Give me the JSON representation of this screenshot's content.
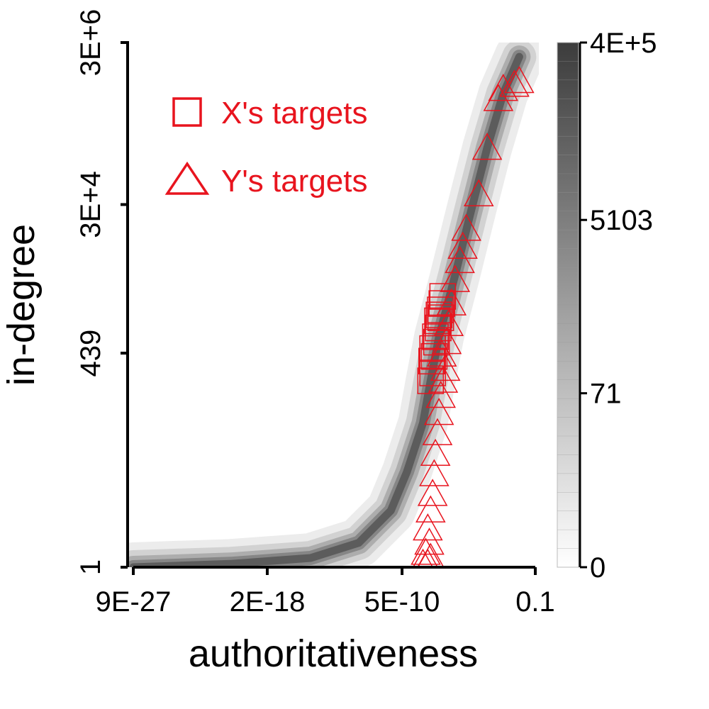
{
  "chart_data": {
    "type": "heatmap",
    "xlabel": "authoritativeness",
    "ylabel": "in-degree",
    "x_scale": "log",
    "y_scale": "log",
    "xlim": [
      9e-27,
      0.1
    ],
    "ylim": [
      1,
      3000000
    ],
    "x_ticks": [
      {
        "value": 9e-27,
        "label": "9E-27"
      },
      {
        "value": 2e-18,
        "label": "2E-18"
      },
      {
        "value": 5e-10,
        "label": "5E-10"
      },
      {
        "value": 0.1,
        "label": "0.1"
      }
    ],
    "y_ticks": [
      {
        "value": 1,
        "label": "1"
      },
      {
        "value": 439,
        "label": "439"
      },
      {
        "value": 30000,
        "label": "3E+4"
      },
      {
        "value": 3000000,
        "label": "3E+6"
      }
    ],
    "colorbar": {
      "ticks": [
        {
          "value": 0,
          "label": "0"
        },
        {
          "value": 71,
          "label": "71"
        },
        {
          "value": 5103,
          "label": "5103"
        },
        {
          "value": 400000,
          "label": "4E+5"
        }
      ],
      "colors": [
        "#ffffff",
        "#3c3c3c"
      ]
    },
    "legend": {
      "placement": "top-left",
      "items": [
        {
          "label": "X's targets",
          "marker": "square",
          "color": "#e8141e"
        },
        {
          "label": "Y's targets",
          "marker": "triangle",
          "color": "#e8141e"
        }
      ]
    },
    "density_curve": [
      {
        "x": 9e-27,
        "y": 1
      },
      {
        "x": 1e-20,
        "y": 1.1
      },
      {
        "x": 1e-15,
        "y": 1.3
      },
      {
        "x": 1e-12,
        "y": 2
      },
      {
        "x": 1e-10,
        "y": 5
      },
      {
        "x": 1e-09,
        "y": 15
      },
      {
        "x": 1e-08,
        "y": 60
      },
      {
        "x": 3e-08,
        "y": 200
      },
      {
        "x": 1e-07,
        "y": 700
      },
      {
        "x": 1e-06,
        "y": 4000
      },
      {
        "x": 1e-05,
        "y": 25000
      },
      {
        "x": 0.0001,
        "y": 150000
      },
      {
        "x": 0.001,
        "y": 700000
      },
      {
        "x": 0.01,
        "y": 2000000
      }
    ],
    "series": [
      {
        "name": "X's targets",
        "marker": "square",
        "points": [
          {
            "x": 3e-08,
            "y": 200
          },
          {
            "x": 4e-08,
            "y": 250
          },
          {
            "x": 3.5e-08,
            "y": 350
          },
          {
            "x": 5e-08,
            "y": 400
          },
          {
            "x": 4e-08,
            "y": 500
          },
          {
            "x": 6e-08,
            "y": 700
          },
          {
            "x": 8e-08,
            "y": 1100
          },
          {
            "x": 1e-07,
            "y": 1300
          },
          {
            "x": 1.2e-07,
            "y": 1500
          },
          {
            "x": 1.5e-07,
            "y": 1800
          },
          {
            "x": 1.3e-07,
            "y": 1200
          },
          {
            "x": 1.7e-07,
            "y": 2200
          },
          {
            "x": 9e-08,
            "y": 900
          },
          {
            "x": 7e-08,
            "y": 600
          }
        ]
      },
      {
        "name": "Y's targets",
        "marker": "triangle",
        "points": [
          {
            "x": 1e-08,
            "y": 1.1
          },
          {
            "x": 2e-08,
            "y": 1.1
          },
          {
            "x": 3e-08,
            "y": 1.3
          },
          {
            "x": 1.5e-08,
            "y": 1.5
          },
          {
            "x": 2.5e-08,
            "y": 2
          },
          {
            "x": 2e-08,
            "y": 3
          },
          {
            "x": 3e-08,
            "y": 5
          },
          {
            "x": 4e-08,
            "y": 8
          },
          {
            "x": 5e-08,
            "y": 14
          },
          {
            "x": 6e-08,
            "y": 25
          },
          {
            "x": 8e-08,
            "y": 45
          },
          {
            "x": 1e-07,
            "y": 80
          },
          {
            "x": 1.3e-07,
            "y": 130
          },
          {
            "x": 1.8e-07,
            "y": 200
          },
          {
            "x": 2.5e-07,
            "y": 280
          },
          {
            "x": 1.5e-07,
            "y": 420
          },
          {
            "x": 3e-07,
            "y": 600
          },
          {
            "x": 4e-07,
            "y": 1000
          },
          {
            "x": 6e-07,
            "y": 1800
          },
          {
            "x": 1e-06,
            "y": 3500
          },
          {
            "x": 2e-06,
            "y": 6000
          },
          {
            "x": 3e-06,
            "y": 9000
          },
          {
            "x": 5e-06,
            "y": 15000
          },
          {
            "x": 3e-05,
            "y": 40000
          },
          {
            "x": 0.0001,
            "y": 150000
          },
          {
            "x": 0.0005,
            "y": 600000
          },
          {
            "x": 0.001,
            "y": 800000
          },
          {
            "x": 0.005,
            "y": 900000
          },
          {
            "x": 0.01,
            "y": 1000000
          }
        ]
      }
    ]
  }
}
